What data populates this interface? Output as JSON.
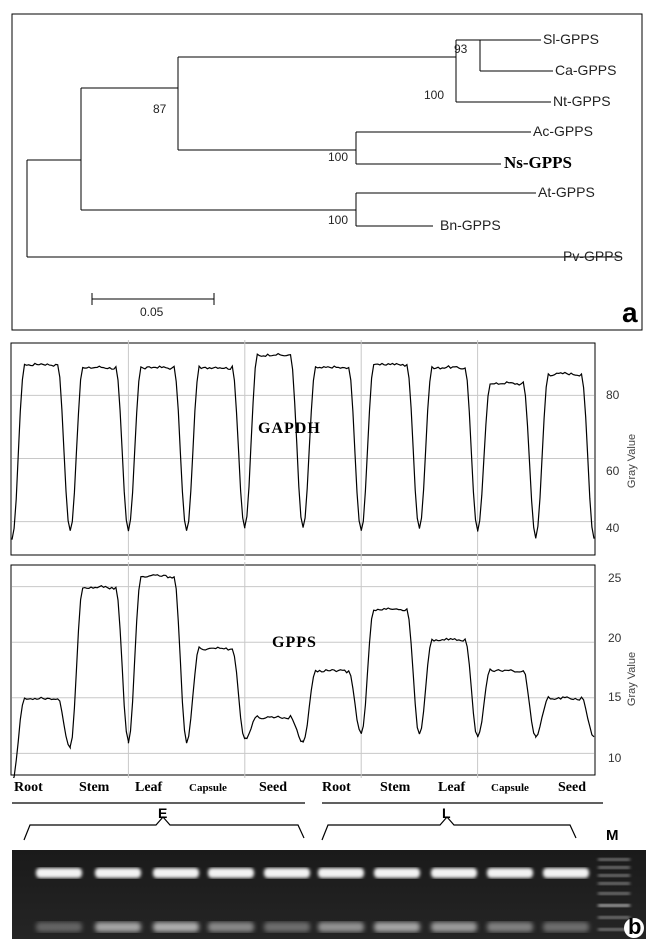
{
  "panel_a": {
    "letter": "a",
    "taxa": [
      {
        "label": "Sl-GPPS",
        "bold": false
      },
      {
        "label": "Ca-GPPS",
        "bold": false
      },
      {
        "label": "Nt-GPPS",
        "bold": false
      },
      {
        "label": "Ac-GPPS",
        "bold": false
      },
      {
        "label": "Ns-GPPS",
        "bold": true
      },
      {
        "label": "At-GPPS",
        "bold": false
      },
      {
        "label": "Bn-GPPS",
        "bold": false
      },
      {
        "label": "Pv-GPPS",
        "bold": false
      }
    ],
    "bootstraps": [
      "93",
      "100",
      "87",
      "100",
      "100"
    ],
    "scale_label": "0.05"
  },
  "panel_b": {
    "letter": "b",
    "gapdh": {
      "label": "GAPDH",
      "axis_label": "Gray Value",
      "ticks": [
        "80",
        "60",
        "40"
      ],
      "ylim": [
        31,
        95
      ],
      "peaks": [
        90,
        89,
        89,
        89,
        93,
        89,
        90,
        89,
        84,
        87
      ],
      "troughs": [
        37,
        37,
        37,
        38,
        38,
        37,
        38,
        37,
        35
      ]
    },
    "gpps": {
      "label": "GPPS",
      "axis_label": "Gray Value",
      "ticks": [
        "25",
        "20",
        "15",
        "10"
      ],
      "ylim": [
        8.5,
        26.5
      ],
      "peaks": [
        15,
        25,
        26,
        19.5,
        13.3,
        17.5,
        23,
        20.3,
        17.5,
        15
      ],
      "troughs": [
        10.5,
        11,
        11,
        11.3,
        11,
        11.7,
        11.7,
        11.5,
        11.5
      ]
    },
    "lanes": [
      "Root",
      "Stem",
      "Leaf",
      "Capsule",
      "Seed",
      "Root",
      "Stem",
      "Leaf",
      "Capsule",
      "Seed"
    ],
    "groups": [
      "E",
      "L"
    ],
    "marker": "M"
  }
}
